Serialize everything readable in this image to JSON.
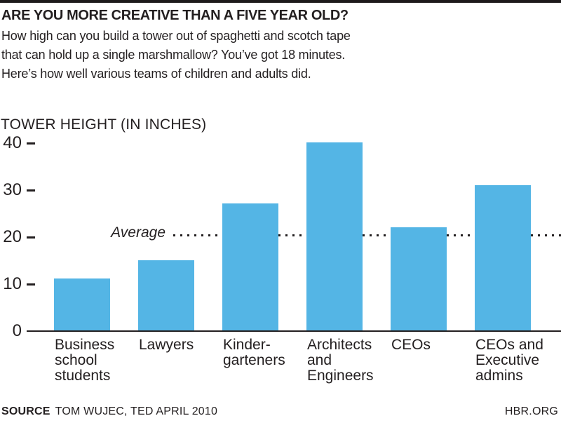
{
  "header": {
    "title": "ARE YOU MORE CREATIVE THAN A FIVE YEAR OLD?",
    "subtitle_lines": [
      "How high can you build a tower out of spaghetti and scotch tape",
      "that can hold up a single marshmallow? You’ve got 18 minutes.",
      "Here’s how well various teams of children and adults did."
    ]
  },
  "chart_data": {
    "type": "bar",
    "title": "TOWER HEIGHT (IN INCHES)",
    "ylabel": "TOWER HEIGHT (IN INCHES)",
    "xlabel": "",
    "categories": [
      "Business school students",
      "Lawyers",
      "Kinder-garteners",
      "Architects and Engineers",
      "CEOs",
      "CEOs and Executive admins"
    ],
    "category_label_lines": [
      [
        "Business",
        "school",
        "students"
      ],
      [
        "Lawyers"
      ],
      [
        "Kinder-",
        "garteners"
      ],
      [
        "Architects",
        "and",
        "Engineers"
      ],
      [
        "CEOs"
      ],
      [
        "CEOs and",
        "Executive",
        "admins"
      ]
    ],
    "values": [
      11,
      15,
      27,
      40,
      22,
      31
    ],
    "average": 20.4,
    "average_label": "Average",
    "yticks": [
      0,
      10,
      20,
      30,
      40
    ],
    "ylim": [
      0,
      42
    ],
    "grid": false,
    "legend": "none",
    "bar_color": "#54b5e5",
    "ink_color": "#231f20"
  },
  "footer": {
    "source_label": "SOURCE",
    "source_text": "TOM WUJEC, TED APRIL 2010",
    "brand": "HBR.ORG"
  }
}
